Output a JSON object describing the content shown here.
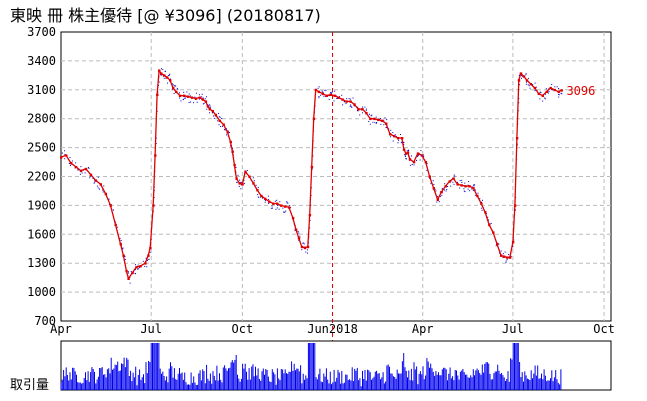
{
  "header": {
    "title": "東映 冊  株主優待  [@ ¥3096] (20180817)"
  },
  "colors": {
    "price_line": "#e00000",
    "scatter": "#0000cc",
    "volume": "#0000ee",
    "grid": "#bbbbbb",
    "marker_line": "#dd0000"
  },
  "chart_data": {
    "type": "line",
    "title": "東映 冊  株主優待  [@ ¥3096] (20180817)",
    "ylim": [
      700,
      3700
    ],
    "y_ticks": [
      "3700",
      "3400",
      "3100",
      "2800",
      "2500",
      "2200",
      "1900",
      "1600",
      "1300",
      "1000",
      "700"
    ],
    "x_tick_labels": [
      "Apr",
      "Jul",
      "Oct",
      "Jun2018",
      "Apr",
      "Jul",
      "Oct"
    ],
    "x_tick_index": [
      0,
      91,
      183,
      274,
      365,
      456,
      548
    ],
    "x_range_days": [
      0,
      555
    ],
    "vertical_marker_day": 274,
    "last_value_label": "3096",
    "volume_label": "取引量",
    "series": [
      {
        "points": [
          [
            0,
            2400
          ],
          [
            5,
            2420
          ],
          [
            10,
            2340
          ],
          [
            15,
            2300
          ],
          [
            20,
            2260
          ],
          [
            25,
            2280
          ],
          [
            30,
            2220
          ],
          [
            35,
            2160
          ],
          [
            40,
            2120
          ],
          [
            45,
            2020
          ],
          [
            50,
            1900
          ],
          [
            55,
            1700
          ],
          [
            60,
            1500
          ],
          [
            63,
            1380
          ],
          [
            66,
            1220
          ],
          [
            68,
            1140
          ],
          [
            72,
            1200
          ],
          [
            76,
            1260
          ],
          [
            80,
            1270
          ],
          [
            85,
            1300
          ],
          [
            88,
            1380
          ],
          [
            90,
            1460
          ],
          [
            93,
            1900
          ],
          [
            95,
            2420
          ],
          [
            97,
            3050
          ],
          [
            99,
            3300
          ],
          [
            101,
            3270
          ],
          [
            104,
            3250
          ],
          [
            107,
            3230
          ],
          [
            110,
            3200
          ],
          [
            113,
            3120
          ],
          [
            116,
            3080
          ],
          [
            120,
            3040
          ],
          [
            124,
            3040
          ],
          [
            128,
            3030
          ],
          [
            132,
            3020
          ],
          [
            136,
            3010
          ],
          [
            140,
            3020
          ],
          [
            143,
            3000
          ],
          [
            146,
            2980
          ],
          [
            148,
            2930
          ],
          [
            150,
            2900
          ],
          [
            153,
            2880
          ],
          [
            156,
            2840
          ],
          [
            160,
            2780
          ],
          [
            164,
            2740
          ],
          [
            168,
            2660
          ],
          [
            171,
            2560
          ],
          [
            173,
            2460
          ],
          [
            175,
            2320
          ],
          [
            177,
            2180
          ],
          [
            180,
            2130
          ],
          [
            183,
            2120
          ],
          [
            186,
            2250
          ],
          [
            190,
            2200
          ],
          [
            194,
            2130
          ],
          [
            198,
            2060
          ],
          [
            202,
            2000
          ],
          [
            206,
            1970
          ],
          [
            210,
            1940
          ],
          [
            214,
            1920
          ],
          [
            218,
            1920
          ],
          [
            222,
            1900
          ],
          [
            226,
            1890
          ],
          [
            230,
            1880
          ],
          [
            234,
            1770
          ],
          [
            237,
            1650
          ],
          [
            240,
            1560
          ],
          [
            243,
            1470
          ],
          [
            246,
            1460
          ],
          [
            249,
            1470
          ],
          [
            251,
            1800
          ],
          [
            253,
            2300
          ],
          [
            255,
            2800
          ],
          [
            257,
            3100
          ],
          [
            260,
            3080
          ],
          [
            264,
            3060
          ],
          [
            268,
            3040
          ],
          [
            272,
            3050
          ],
          [
            276,
            3040
          ],
          [
            280,
            3020
          ],
          [
            284,
            3000
          ],
          [
            288,
            2980
          ],
          [
            292,
            2980
          ],
          [
            296,
            2950
          ],
          [
            300,
            2900
          ],
          [
            304,
            2900
          ],
          [
            308,
            2860
          ],
          [
            312,
            2800
          ],
          [
            316,
            2800
          ],
          [
            320,
            2790
          ],
          [
            324,
            2780
          ],
          [
            328,
            2750
          ],
          [
            332,
            2640
          ],
          [
            336,
            2620
          ],
          [
            340,
            2600
          ],
          [
            344,
            2600
          ],
          [
            346,
            2480
          ],
          [
            348,
            2440
          ],
          [
            350,
            2450
          ],
          [
            352,
            2380
          ],
          [
            356,
            2350
          ],
          [
            360,
            2440
          ],
          [
            364,
            2420
          ],
          [
            368,
            2350
          ],
          [
            372,
            2200
          ],
          [
            376,
            2080
          ],
          [
            380,
            1960
          ],
          [
            384,
            2040
          ],
          [
            388,
            2100
          ],
          [
            392,
            2150
          ],
          [
            396,
            2180
          ],
          [
            400,
            2120
          ],
          [
            404,
            2110
          ],
          [
            408,
            2100
          ],
          [
            412,
            2100
          ],
          [
            416,
            2080
          ],
          [
            420,
            2000
          ],
          [
            424,
            1920
          ],
          [
            428,
            1830
          ],
          [
            432,
            1700
          ],
          [
            436,
            1620
          ],
          [
            440,
            1500
          ],
          [
            444,
            1380
          ],
          [
            447,
            1370
          ],
          [
            450,
            1360
          ],
          [
            453,
            1360
          ],
          [
            456,
            1520
          ],
          [
            458,
            1900
          ],
          [
            460,
            2600
          ],
          [
            462,
            3200
          ],
          [
            464,
            3270
          ],
          [
            467,
            3240
          ],
          [
            470,
            3200
          ],
          [
            474,
            3160
          ],
          [
            478,
            3120
          ],
          [
            482,
            3060
          ],
          [
            486,
            3040
          ],
          [
            490,
            3080
          ],
          [
            494,
            3120
          ],
          [
            498,
            3100
          ],
          [
            502,
            3080
          ],
          [
            505,
            3096
          ]
        ]
      }
    ]
  }
}
